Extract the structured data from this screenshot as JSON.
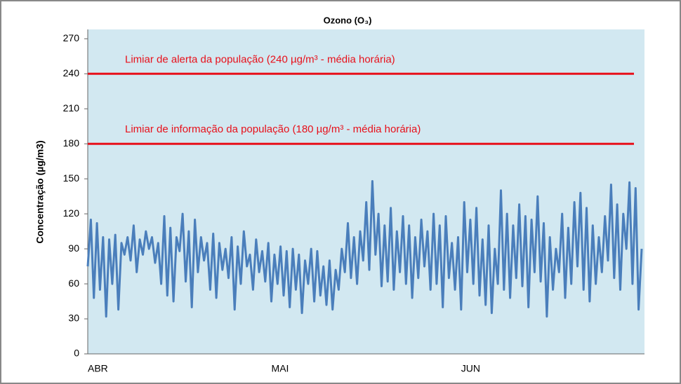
{
  "chart_data": {
    "type": "line",
    "title": "Ozono (O₃)",
    "y_label": "Concentração (µg/m3)",
    "categories": [
      "ABR",
      null,
      null,
      null,
      null,
      null,
      null,
      null,
      null,
      null,
      null,
      null,
      null,
      null,
      null,
      null,
      null,
      null,
      null,
      null,
      null,
      null,
      null,
      null,
      null,
      null,
      null,
      null,
      null,
      null,
      null,
      null,
      null,
      null,
      null,
      null,
      null,
      null,
      null,
      null,
      null,
      null,
      null,
      null,
      null,
      null,
      null,
      null,
      null,
      null,
      null,
      null,
      null,
      null,
      null,
      null,
      null,
      null,
      null,
      null,
      "MAI",
      null,
      null,
      null,
      null,
      null,
      null,
      null,
      null,
      null,
      null,
      null,
      null,
      null,
      null,
      null,
      null,
      null,
      null,
      null,
      null,
      null,
      null,
      null,
      null,
      null,
      null,
      null,
      null,
      null,
      null,
      null,
      null,
      null,
      null,
      null,
      null,
      null,
      null,
      null,
      null,
      null,
      null,
      null,
      null,
      null,
      null,
      null,
      null,
      null,
      null,
      null,
      null,
      null,
      null,
      null,
      null,
      null,
      null,
      null,
      null,
      null,
      "JUN",
      null,
      null,
      null,
      null,
      null,
      null,
      null,
      null,
      null,
      null,
      null,
      null,
      null,
      null,
      null,
      null,
      null,
      null,
      null,
      null,
      null,
      null,
      null,
      null,
      null,
      null,
      null,
      null,
      null,
      null,
      null,
      null,
      null,
      null,
      null,
      null,
      null,
      null,
      null,
      null,
      null,
      null,
      null,
      null,
      null,
      null,
      null,
      null,
      null,
      null,
      null,
      null,
      null,
      null,
      null,
      null,
      null,
      null,
      null
    ],
    "series": [
      {
        "name": "O₃",
        "color": "#4a7ebb",
        "values": [
          75,
          115,
          48,
          112,
          55,
          100,
          32,
          98,
          60,
          102,
          38,
          95,
          85,
          100,
          80,
          110,
          70,
          98,
          85,
          105,
          90,
          100,
          78,
          95,
          60,
          118,
          50,
          108,
          45,
          100,
          88,
          120,
          62,
          105,
          40,
          115,
          70,
          100,
          80,
          95,
          55,
          103,
          48,
          95,
          72,
          90,
          65,
          100,
          38,
          92,
          60,
          105,
          75,
          85,
          55,
          98,
          70,
          88,
          62,
          95,
          45,
          85,
          60,
          92,
          50,
          88,
          40,
          90,
          55,
          85,
          35,
          80,
          60,
          90,
          45,
          88,
          50,
          75,
          42,
          80,
          38,
          72,
          55,
          90,
          70,
          112,
          65,
          100,
          60,
          105,
          80,
          130,
          72,
          148,
          85,
          120,
          58,
          110,
          62,
          125,
          55,
          105,
          70,
          118,
          60,
          110,
          48,
          100,
          65,
          115,
          75,
          105,
          55,
          120,
          60,
          110,
          40,
          118,
          65,
          95,
          55,
          100,
          38,
          130,
          70,
          115,
          60,
          125,
          50,
          98,
          42,
          110,
          35,
          90,
          60,
          140,
          55,
          120,
          48,
          110,
          65,
          128,
          58,
          118,
          40,
          115,
          70,
          135,
          62,
          112,
          32,
          100,
          55,
          90,
          70,
          120,
          48,
          108,
          60,
          130,
          75,
          138,
          55,
          125,
          45,
          110,
          60,
          100,
          70,
          118,
          80,
          145,
          65,
          128,
          55,
          120,
          90,
          147,
          60,
          142,
          38,
          90
        ]
      }
    ],
    "ylim": [
      0,
      278
    ],
    "yticks": [
      0,
      30,
      60,
      90,
      120,
      150,
      180,
      210,
      240,
      270
    ],
    "reference_lines": [
      {
        "value": 240,
        "label": "Limiar de alerta da população (240 µg/m³ - média horária)",
        "color": "#e8101a"
      },
      {
        "value": 180,
        "label": "Limiar de informação da população (180 µg/m³ - média horária)",
        "color": "#e8101a"
      }
    ]
  }
}
